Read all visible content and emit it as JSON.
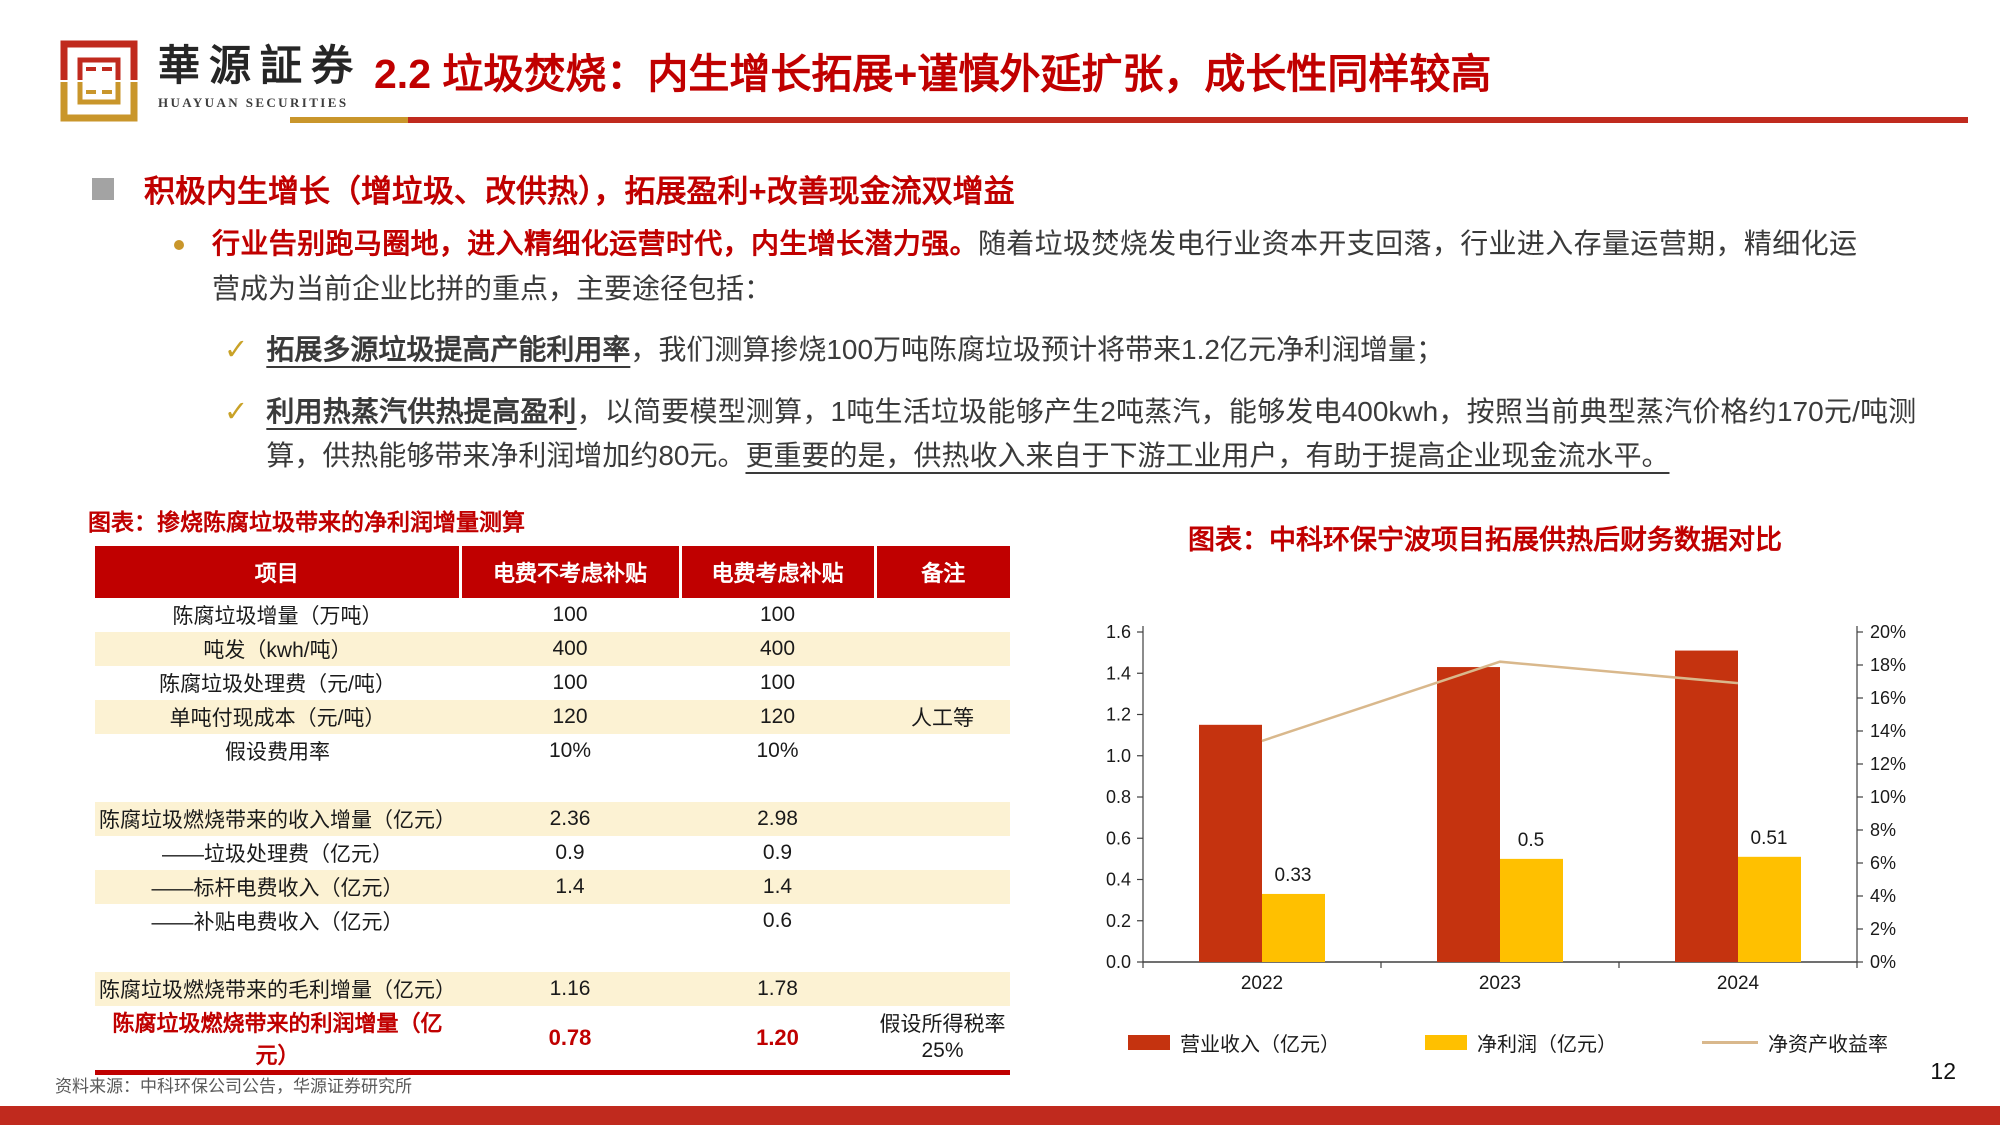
{
  "header": {
    "logo_cn": "華源証券",
    "logo_en": "HUAYUAN SECURITIES",
    "title": "2.2 垃圾焚烧：内生增长拓展+谨慎外延扩张，成长性同样较高"
  },
  "section": {
    "heading": "积极内生增长（增垃圾、改供热），拓展盈利+改善现金流双增益"
  },
  "bullets": {
    "para": [
      {
        "t": "行业告别跑马圈地，进入精细化运营时代，内生增长潜力强。",
        "s": "rb"
      },
      {
        "t": "随着垃圾焚烧发电行业资本开支回落，行业进入存量运营期，精细化运营成为当前企业比拼的重点，主要途径包括：",
        "s": "n"
      }
    ],
    "check_mark": "✓",
    "check1": [
      {
        "t": "拓展多源垃圾提高产能利用率",
        "s": "u"
      },
      {
        "t": "，我们测算掺烧100万吨陈腐垃圾预计将带来1.2亿元净利润增量；",
        "s": "n"
      }
    ],
    "check2": [
      {
        "t": "利用热蒸汽供热提高盈利",
        "s": "u"
      },
      {
        "t": "，以简要模型测算，1吨生活垃圾能够产生2吨蒸汽，能够发电400kwh，按照当前典型蒸汽价格约170元/吨测算，供热能够带来净利润增加约80元。",
        "s": "n"
      },
      {
        "t": "更重要的是，供热收入来自于下游工业用户，有助于提高企业现金流水平。",
        "s": "un"
      }
    ]
  },
  "table": {
    "title": "图表：掺烧陈腐垃圾带来的净利润增量测算",
    "columns": [
      "项目",
      "电费不考虑补贴",
      "电费考虑补贴",
      "备注"
    ],
    "rows": [
      {
        "cells": [
          "陈腐垃圾增量（万吨）",
          "100",
          "100",
          ""
        ],
        "shade": false
      },
      {
        "cells": [
          "吨发（kwh/吨）",
          "400",
          "400",
          ""
        ],
        "shade": true
      },
      {
        "cells": [
          "陈腐垃圾处理费（元/吨）",
          "100",
          "100",
          ""
        ],
        "shade": false
      },
      {
        "cells": [
          "单吨付现成本（元/吨）",
          "120",
          "120",
          "人工等"
        ],
        "shade": true
      },
      {
        "cells": [
          "假设费用率",
          "10%",
          "10%",
          ""
        ],
        "shade": false
      },
      {
        "cells": [
          "",
          "",
          "",
          ""
        ],
        "shade": false,
        "spacer": true
      },
      {
        "cells": [
          "陈腐垃圾燃烧带来的收入增量（亿元）",
          "2.36",
          "2.98",
          ""
        ],
        "shade": true
      },
      {
        "cells": [
          "——垃圾处理费（亿元）",
          "0.9",
          "0.9",
          ""
        ],
        "shade": false
      },
      {
        "cells": [
          "——标杆电费收入（亿元）",
          "1.4",
          "1.4",
          ""
        ],
        "shade": true
      },
      {
        "cells": [
          "——补贴电费收入（亿元）",
          "",
          "0.6",
          ""
        ],
        "shade": false
      },
      {
        "cells": [
          "",
          "",
          "",
          ""
        ],
        "shade": false,
        "spacer": true
      },
      {
        "cells": [
          "陈腐垃圾燃烧带来的毛利增量（亿元）",
          "1.16",
          "1.78",
          ""
        ],
        "shade": true
      },
      {
        "cells": [
          "陈腐垃圾燃烧带来的利润增量（亿元）",
          "0.78",
          "1.20",
          "假设所得税率 25%"
        ],
        "shade": false,
        "highlight": true
      }
    ]
  },
  "chart_data": {
    "type": "bar",
    "title": "图表：中科环保宁波项目拓展供热后财务数据对比",
    "categories": [
      "2022",
      "2023",
      "2024"
    ],
    "series": [
      {
        "name": "营业收入（亿元）",
        "kind": "bar",
        "axis": "left",
        "color": "#C5330F",
        "values": [
          1.15,
          1.43,
          1.51
        ]
      },
      {
        "name": "净利润（亿元）",
        "kind": "bar",
        "axis": "left",
        "color": "#FFC000",
        "values": [
          0.33,
          0.5,
          0.51
        ],
        "data_labels": [
          "0.33",
          "0.5",
          "0.51"
        ]
      },
      {
        "name": "净资产收益率",
        "kind": "line",
        "axis": "right",
        "color": "#D9B88C",
        "unit": "%",
        "values": [
          13.4,
          18.2,
          16.9
        ]
      }
    ],
    "left_axis": {
      "min": 0,
      "max": 1.6,
      "step": 0.2,
      "labels": [
        "0.0",
        "0.2",
        "0.4",
        "0.6",
        "0.8",
        "1.0",
        "1.2",
        "1.4",
        "1.6"
      ]
    },
    "right_axis": {
      "min": 0,
      "max": 20,
      "step": 2,
      "labels": [
        "0%",
        "2%",
        "4%",
        "6%",
        "8%",
        "10%",
        "12%",
        "14%",
        "16%",
        "18%",
        "20%"
      ]
    },
    "grid": false,
    "legend_position": "bottom"
  },
  "footer": {
    "source": "资料来源：中科环保公司公告，华源证券研究所",
    "page": "12"
  },
  "colors": {
    "accent_red": "#C00000",
    "rule_red": "#C02A1E",
    "gold": "#C9962B",
    "cream_row": "#FCF2D3",
    "bar_red": "#C5330F",
    "bar_yellow": "#FFC000",
    "line_tan": "#D9B88C"
  }
}
